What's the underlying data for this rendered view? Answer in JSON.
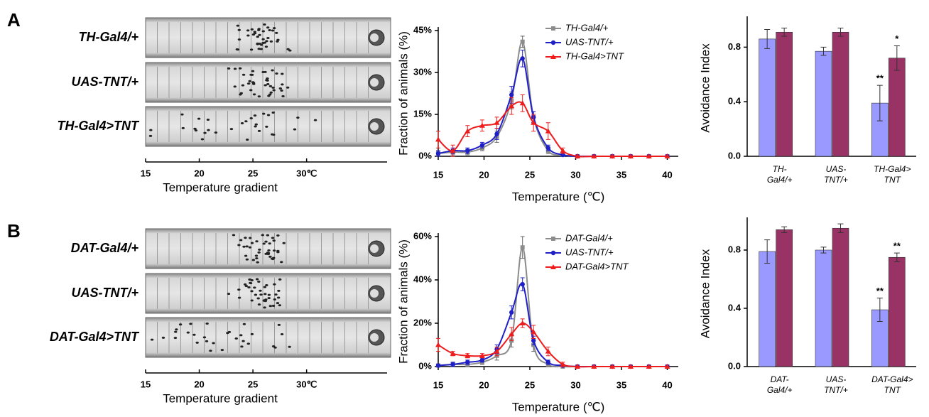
{
  "panels": [
    {
      "letter": "A",
      "gradient": {
        "rows": [
          "TH-Gal4/+",
          "UAS-TNT/+",
          "TH-Gal4>TNT"
        ],
        "xlim": [
          15,
          37.5
        ],
        "ticks": [
          15,
          20,
          25,
          {
            "value": 30,
            "label": "30℃"
          }
        ],
        "xlabel": "Temperature gradient"
      }
    },
    {
      "letter": "B",
      "gradient": {
        "rows": [
          "DAT-Gal4/+",
          "UAS-TNT/+",
          "DAT-Gal4>TNT"
        ],
        "xlim": [
          15,
          37.5
        ],
        "ticks": [
          15,
          20,
          25,
          {
            "value": 30,
            "label": "30℃"
          }
        ],
        "xlabel": "Temperature gradient"
      }
    }
  ],
  "chart_data": [
    {
      "type": "line",
      "xlabel": "Temperature (℃)",
      "ylabel": "Fraction of animals (%)",
      "x": [
        15,
        16.6,
        18.2,
        19.8,
        21.4,
        23,
        24.2,
        25.4,
        27,
        28.6,
        30.2,
        32,
        34,
        36,
        38,
        40
      ],
      "xlim": [
        15,
        41.2
      ],
      "xticks": [
        15,
        20,
        25,
        30,
        35,
        40
      ],
      "ylim": [
        0,
        45
      ],
      "yticks": [
        0,
        {
          "value": 15,
          "label": "15%"
        },
        {
          "value": 30,
          "label": "30%"
        },
        {
          "value": 45,
          "label": "45%"
        }
      ],
      "yticklabel_first": "0%",
      "series": [
        {
          "name": "TH-Gal4/+",
          "color": "#8c8c8c",
          "marker": "square",
          "values": [
            1,
            1.5,
            1.5,
            3,
            7,
            20,
            41,
            14,
            2,
            0.5,
            0,
            0,
            0,
            0,
            0,
            0
          ],
          "errors": [
            1,
            1,
            1,
            1,
            2,
            3,
            2,
            2,
            1,
            0.5,
            0,
            0,
            0,
            0,
            0,
            0
          ]
        },
        {
          "name": "UAS-TNT/+",
          "color": "#1f1fc8",
          "marker": "circle",
          "values": [
            1,
            2,
            2,
            4,
            8,
            22,
            35,
            14,
            3,
            0.5,
            0,
            0,
            0,
            0,
            0,
            0
          ],
          "errors": [
            1,
            1,
            1,
            1,
            2,
            3,
            3,
            2,
            1,
            0.5,
            0,
            0,
            0,
            0,
            0,
            0
          ]
        },
        {
          "name": "TH-Gal4>TNT",
          "color": "#ee1c1c",
          "marker": "triangle",
          "values": [
            6,
            2,
            9,
            11,
            12,
            18,
            19,
            12,
            9,
            2,
            0,
            0,
            0,
            0,
            0,
            0
          ],
          "errors": [
            3,
            2,
            2,
            2,
            2,
            3,
            3,
            3,
            3,
            1,
            0,
            0,
            0,
            0,
            0,
            0
          ]
        }
      ]
    },
    {
      "type": "bar",
      "ylabel": "Avoidance Index",
      "categories": [
        [
          "TH-",
          "Gal4/+"
        ],
        [
          "UAS-",
          "TNT/+"
        ],
        [
          "TH-Gal4>",
          "TNT"
        ]
      ],
      "ylim": [
        0,
        1.0
      ],
      "yticks": [
        {
          "value": 0,
          "label": "0.0"
        },
        0.4,
        0.8
      ],
      "series": [
        {
          "color": "#9999ff",
          "values": [
            0.86,
            0.77,
            0.39
          ],
          "errors": [
            0.07,
            0.03,
            0.13
          ],
          "significance": [
            null,
            null,
            "**"
          ]
        },
        {
          "color": "#993366",
          "values": [
            0.91,
            0.91,
            0.72
          ],
          "errors": [
            0.03,
            0.03,
            0.09
          ],
          "significance": [
            null,
            null,
            "*"
          ]
        }
      ]
    },
    {
      "type": "line",
      "xlabel": "Temperature (℃)",
      "ylabel": "Fraction of animals (%)",
      "x": [
        15,
        16.6,
        18.2,
        19.8,
        21.4,
        23,
        24.2,
        25.4,
        27,
        28.6,
        30.2,
        32,
        34,
        36,
        38,
        40
      ],
      "xlim": [
        15,
        41.2
      ],
      "xticks": [
        15,
        20,
        25,
        30,
        35,
        40
      ],
      "ylim": [
        0,
        60
      ],
      "yticks": [
        0,
        {
          "value": 20,
          "label": "20%"
        },
        {
          "value": 40,
          "label": "40%"
        },
        {
          "value": 60,
          "label": "60%"
        }
      ],
      "yticklabel_first": "0%",
      "series": [
        {
          "name": "DAT-Gal4/+",
          "color": "#8c8c8c",
          "marker": "square",
          "values": [
            0.5,
            1,
            1,
            2,
            5,
            12,
            55,
            10,
            1,
            0,
            0,
            0,
            0,
            0,
            0,
            0
          ],
          "errors": [
            0.5,
            1,
            1,
            1,
            2,
            3,
            5,
            3,
            1,
            0,
            0,
            0,
            0,
            0,
            0,
            0
          ]
        },
        {
          "name": "UAS-TNT/+",
          "color": "#1f1fc8",
          "marker": "circle",
          "values": [
            0.5,
            1,
            2,
            3,
            8,
            25,
            38,
            12,
            2,
            0.5,
            0,
            0,
            0,
            0,
            0,
            0
          ],
          "errors": [
            0.5,
            1,
            1,
            1,
            2,
            3,
            3,
            2,
            1,
            0.5,
            0,
            0,
            0,
            0,
            0,
            0
          ]
        },
        {
          "name": "DAT-Gal4>TNT",
          "color": "#ee1c1c",
          "marker": "triangle",
          "values": [
            10,
            6,
            5,
            5,
            7,
            15,
            20,
            16,
            7,
            1,
            0,
            0,
            0,
            0,
            0,
            0
          ],
          "errors": [
            3,
            1,
            1,
            1,
            2,
            3,
            2,
            3,
            2,
            1,
            0,
            0,
            0,
            0,
            0,
            0
          ]
        }
      ]
    },
    {
      "type": "bar",
      "ylabel": "Avoidance Index",
      "categories": [
        [
          "DAT-",
          "Gal4/+"
        ],
        [
          "UAS-",
          "TNT/+"
        ],
        [
          "DAT-Gal4>",
          "TNT"
        ]
      ],
      "ylim": [
        0,
        1.0
      ],
      "yticks": [
        {
          "value": 0,
          "label": "0.0"
        },
        0.4,
        0.8
      ],
      "series": [
        {
          "color": "#9999ff",
          "values": [
            0.79,
            0.8,
            0.39
          ],
          "errors": [
            0.08,
            0.02,
            0.08
          ],
          "significance": [
            null,
            null,
            "**"
          ]
        },
        {
          "color": "#993366",
          "values": [
            0.94,
            0.95,
            0.75
          ],
          "errors": [
            0.02,
            0.03,
            0.03
          ],
          "significance": [
            null,
            null,
            "**"
          ]
        }
      ]
    }
  ]
}
